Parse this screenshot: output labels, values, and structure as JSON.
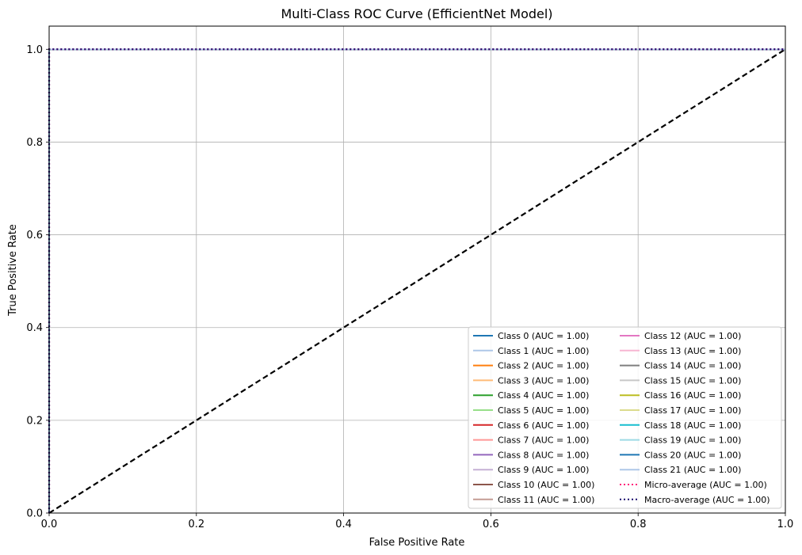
{
  "chart_data": {
    "type": "line",
    "title": "Multi-Class ROC Curve (EfficientNet Model)",
    "xlabel": "False Positive Rate",
    "ylabel": "True Positive Rate",
    "xlim": [
      0,
      1
    ],
    "ylim": [
      0,
      1.05
    ],
    "xticks": [
      "0.0",
      "0.2",
      "0.4",
      "0.6",
      "0.8",
      "1.0"
    ],
    "yticks": [
      "0.0",
      "0.2",
      "0.4",
      "0.6",
      "0.8",
      "1.0"
    ],
    "grid": true,
    "legend_position": "lower right",
    "legend_columns": 2,
    "series": [
      {
        "name": "Class 0 (AUC = 1.00)",
        "color": "#1f77b4",
        "style": "solid",
        "x": [
          0,
          0,
          1
        ],
        "y": [
          0,
          1,
          1
        ]
      },
      {
        "name": "Class 1 (AUC = 1.00)",
        "color": "#aec7e8",
        "style": "solid",
        "x": [
          0,
          0,
          1
        ],
        "y": [
          0,
          1,
          1
        ]
      },
      {
        "name": "Class 2 (AUC = 1.00)",
        "color": "#ff7f0e",
        "style": "solid",
        "x": [
          0,
          0,
          1
        ],
        "y": [
          0,
          1,
          1
        ]
      },
      {
        "name": "Class 3 (AUC = 1.00)",
        "color": "#ffbb78",
        "style": "solid",
        "x": [
          0,
          0,
          1
        ],
        "y": [
          0,
          1,
          1
        ]
      },
      {
        "name": "Class 4 (AUC = 1.00)",
        "color": "#2ca02c",
        "style": "solid",
        "x": [
          0,
          0,
          1
        ],
        "y": [
          0,
          1,
          1
        ]
      },
      {
        "name": "Class 5 (AUC = 1.00)",
        "color": "#98df8a",
        "style": "solid",
        "x": [
          0,
          0,
          1
        ],
        "y": [
          0,
          1,
          1
        ]
      },
      {
        "name": "Class 6 (AUC = 1.00)",
        "color": "#d62728",
        "style": "solid",
        "x": [
          0,
          0,
          1
        ],
        "y": [
          0,
          1,
          1
        ]
      },
      {
        "name": "Class 7 (AUC = 1.00)",
        "color": "#ff9896",
        "style": "solid",
        "x": [
          0,
          0,
          1
        ],
        "y": [
          0,
          1,
          1
        ]
      },
      {
        "name": "Class 8 (AUC = 1.00)",
        "color": "#9467bd",
        "style": "solid",
        "x": [
          0,
          0,
          1
        ],
        "y": [
          0,
          1,
          1
        ]
      },
      {
        "name": "Class 9 (AUC = 1.00)",
        "color": "#c5b0d5",
        "style": "solid",
        "x": [
          0,
          0,
          1
        ],
        "y": [
          0,
          1,
          1
        ]
      },
      {
        "name": "Class 10 (AUC = 1.00)",
        "color": "#8c564b",
        "style": "solid",
        "x": [
          0,
          0,
          1
        ],
        "y": [
          0,
          1,
          1
        ]
      },
      {
        "name": "Class 11 (AUC = 1.00)",
        "color": "#c49c94",
        "style": "solid",
        "x": [
          0,
          0,
          1
        ],
        "y": [
          0,
          1,
          1
        ]
      },
      {
        "name": "Class 12 (AUC = 1.00)",
        "color": "#e377c2",
        "style": "solid",
        "x": [
          0,
          0,
          1
        ],
        "y": [
          0,
          1,
          1
        ]
      },
      {
        "name": "Class 13 (AUC = 1.00)",
        "color": "#f7b6d2",
        "style": "solid",
        "x": [
          0,
          0,
          1
        ],
        "y": [
          0,
          1,
          1
        ]
      },
      {
        "name": "Class 14 (AUC = 1.00)",
        "color": "#7f7f7f",
        "style": "solid",
        "x": [
          0,
          0,
          1
        ],
        "y": [
          0,
          1,
          1
        ]
      },
      {
        "name": "Class 15 (AUC = 1.00)",
        "color": "#c7c7c7",
        "style": "solid",
        "x": [
          0,
          0,
          1
        ],
        "y": [
          0,
          1,
          1
        ]
      },
      {
        "name": "Class 16 (AUC = 1.00)",
        "color": "#bcbd22",
        "style": "solid",
        "x": [
          0,
          0,
          1
        ],
        "y": [
          0,
          1,
          1
        ]
      },
      {
        "name": "Class 17 (AUC = 1.00)",
        "color": "#dbdb8d",
        "style": "solid",
        "x": [
          0,
          0,
          1
        ],
        "y": [
          0,
          1,
          1
        ]
      },
      {
        "name": "Class 18 (AUC = 1.00)",
        "color": "#17becf",
        "style": "solid",
        "x": [
          0,
          0,
          1
        ],
        "y": [
          0,
          1,
          1
        ]
      },
      {
        "name": "Class 19 (AUC = 1.00)",
        "color": "#9edae5",
        "style": "solid",
        "x": [
          0,
          0,
          1
        ],
        "y": [
          0,
          1,
          1
        ]
      },
      {
        "name": "Class 20 (AUC = 1.00)",
        "color": "#1f77b4",
        "style": "solid",
        "x": [
          0,
          0,
          1
        ],
        "y": [
          0,
          1,
          1
        ]
      },
      {
        "name": "Class 21 (AUC = 1.00)",
        "color": "#aec7e8",
        "style": "solid",
        "x": [
          0,
          0,
          1
        ],
        "y": [
          0,
          1,
          1
        ]
      },
      {
        "name": "Micro-average (AUC = 1.00)",
        "color": "#ff1f7a",
        "style": "dotted",
        "x": [
          0,
          0,
          1
        ],
        "y": [
          0,
          1,
          1
        ]
      },
      {
        "name": "Macro-average (AUC = 1.00)",
        "color": "#1a0f6e",
        "style": "dotted",
        "x": [
          0,
          0,
          1
        ],
        "y": [
          0,
          1,
          1
        ]
      }
    ],
    "reference_line": {
      "color": "#000000",
      "style": "dashed",
      "x": [
        0,
        1
      ],
      "y": [
        0,
        1
      ]
    }
  }
}
